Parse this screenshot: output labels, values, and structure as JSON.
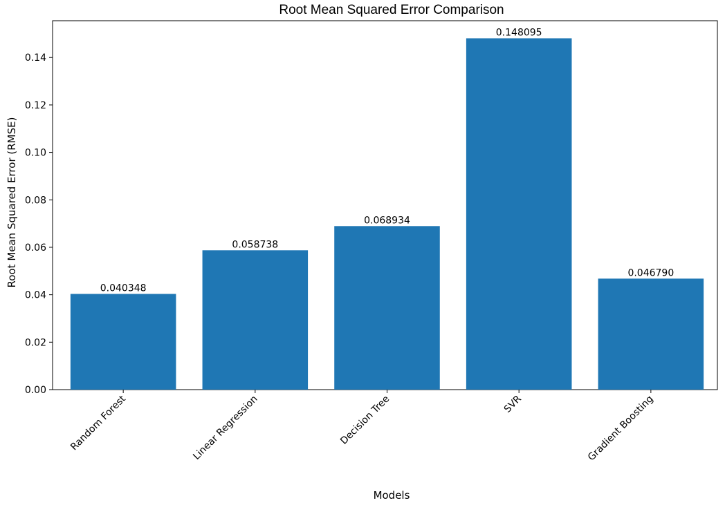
{
  "chart_data": {
    "type": "bar",
    "title": "Root Mean Squared Error Comparison",
    "xlabel": "Models",
    "ylabel": "Root Mean Squared Error (RMSE)",
    "categories": [
      "Random Forest",
      "Linear Regression",
      "Decision Tree",
      "SVR",
      "Gradient Boosting"
    ],
    "values": [
      0.040348,
      0.058738,
      0.068934,
      0.148095,
      0.04679
    ],
    "value_labels": [
      "0.040348",
      "0.058738",
      "0.068934",
      "0.148095",
      "0.046790"
    ],
    "ylim": [
      0,
      0.1555
    ],
    "yticks": [
      0,
      0.02,
      0.04,
      0.06,
      0.08,
      0.1,
      0.12,
      0.14
    ],
    "ytick_labels": [
      "0.00",
      "0.02",
      "0.04",
      "0.06",
      "0.08",
      "0.10",
      "0.12",
      "0.14"
    ],
    "bar_color": "#1f77b4",
    "grid": false,
    "legend": false
  }
}
